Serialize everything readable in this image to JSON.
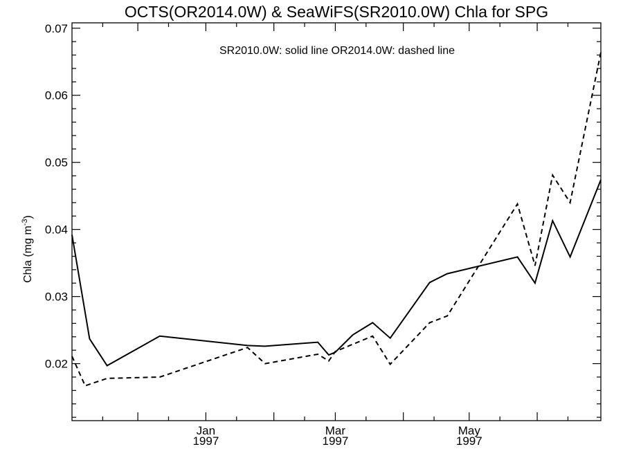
{
  "chart_data": {
    "type": "line",
    "title": "OCTS(OR2014.0W) & SeaWiFS(SR2010.0W)  Chla for SPG",
    "annotation": "SR2010.0W: solid line   OR2014.0W: dashed line",
    "ylabel_text": "Chla (mg m",
    "ylabel_sup": "-3",
    "ylabel_tail": ")",
    "ylim": [
      0.0115,
      0.0708
    ],
    "xlim": [
      "1996-11-01",
      "1997-06-30"
    ],
    "yticks": [
      {
        "value": 0.02,
        "label": "0.02"
      },
      {
        "value": 0.03,
        "label": "0.03"
      },
      {
        "value": 0.04,
        "label": "0.04"
      },
      {
        "value": 0.05,
        "label": "0.05"
      },
      {
        "value": 0.06,
        "label": "0.06"
      },
      {
        "value": 0.07,
        "label": "0.07"
      }
    ],
    "xticks": [
      {
        "date": "1996-12-01",
        "month": "",
        "year": ""
      },
      {
        "date": "1997-01-01",
        "month": "Jan",
        "year": "1997"
      },
      {
        "date": "1997-02-01",
        "month": "",
        "year": ""
      },
      {
        "date": "1997-03-01",
        "month": "Mar",
        "year": "1997"
      },
      {
        "date": "1997-04-01",
        "month": "",
        "year": ""
      },
      {
        "date": "1997-05-01",
        "month": "May",
        "year": "1997"
      },
      {
        "date": "1997-06-01",
        "month": "",
        "year": ""
      }
    ],
    "series": [
      {
        "name": "SR2010.0W",
        "style": "solid",
        "color": "#000000",
        "points": [
          {
            "x": "1996-11-01",
            "y": 0.0392
          },
          {
            "x": "1996-11-09",
            "y": 0.0237
          },
          {
            "x": "1996-11-17",
            "y": 0.0197
          },
          {
            "x": "1996-12-11",
            "y": 0.0241
          },
          {
            "x": "1997-01-20",
            "y": 0.0227
          },
          {
            "x": "1997-01-28",
            "y": 0.0226
          },
          {
            "x": "1997-02-21",
            "y": 0.0232
          },
          {
            "x": "1997-02-26",
            "y": 0.0213
          },
          {
            "x": "1997-03-01",
            "y": 0.0217
          },
          {
            "x": "1997-03-09",
            "y": 0.0243
          },
          {
            "x": "1997-03-18",
            "y": 0.0261
          },
          {
            "x": "1997-03-26",
            "y": 0.0238
          },
          {
            "x": "1997-04-13",
            "y": 0.0321
          },
          {
            "x": "1997-04-21",
            "y": 0.0334
          },
          {
            "x": "1997-05-23",
            "y": 0.0359
          },
          {
            "x": "1997-05-31",
            "y": 0.032
          },
          {
            "x": "1997-06-08",
            "y": 0.0413
          },
          {
            "x": "1997-06-16",
            "y": 0.0359
          },
          {
            "x": "1997-06-30",
            "y": 0.0474
          }
        ]
      },
      {
        "name": "OR2014.0W",
        "style": "dashed",
        "color": "#000000",
        "points": [
          {
            "x": "1996-11-01",
            "y": 0.0211
          },
          {
            "x": "1996-11-07",
            "y": 0.0167
          },
          {
            "x": "1996-11-17",
            "y": 0.0178
          },
          {
            "x": "1996-12-11",
            "y": 0.018
          },
          {
            "x": "1997-01-20",
            "y": 0.0224
          },
          {
            "x": "1997-01-28",
            "y": 0.02
          },
          {
            "x": "1997-02-21",
            "y": 0.0214
          },
          {
            "x": "1997-02-26",
            "y": 0.0204
          },
          {
            "x": "1997-03-01",
            "y": 0.0218
          },
          {
            "x": "1997-03-09",
            "y": 0.0229
          },
          {
            "x": "1997-03-18",
            "y": 0.0241
          },
          {
            "x": "1997-03-26",
            "y": 0.0199
          },
          {
            "x": "1997-04-13",
            "y": 0.0261
          },
          {
            "x": "1997-04-21",
            "y": 0.0271
          },
          {
            "x": "1997-05-23",
            "y": 0.0438
          },
          {
            "x": "1997-05-31",
            "y": 0.0346
          },
          {
            "x": "1997-06-08",
            "y": 0.0481
          },
          {
            "x": "1997-06-16",
            "y": 0.044
          },
          {
            "x": "1997-06-30",
            "y": 0.0664
          }
        ]
      }
    ]
  }
}
